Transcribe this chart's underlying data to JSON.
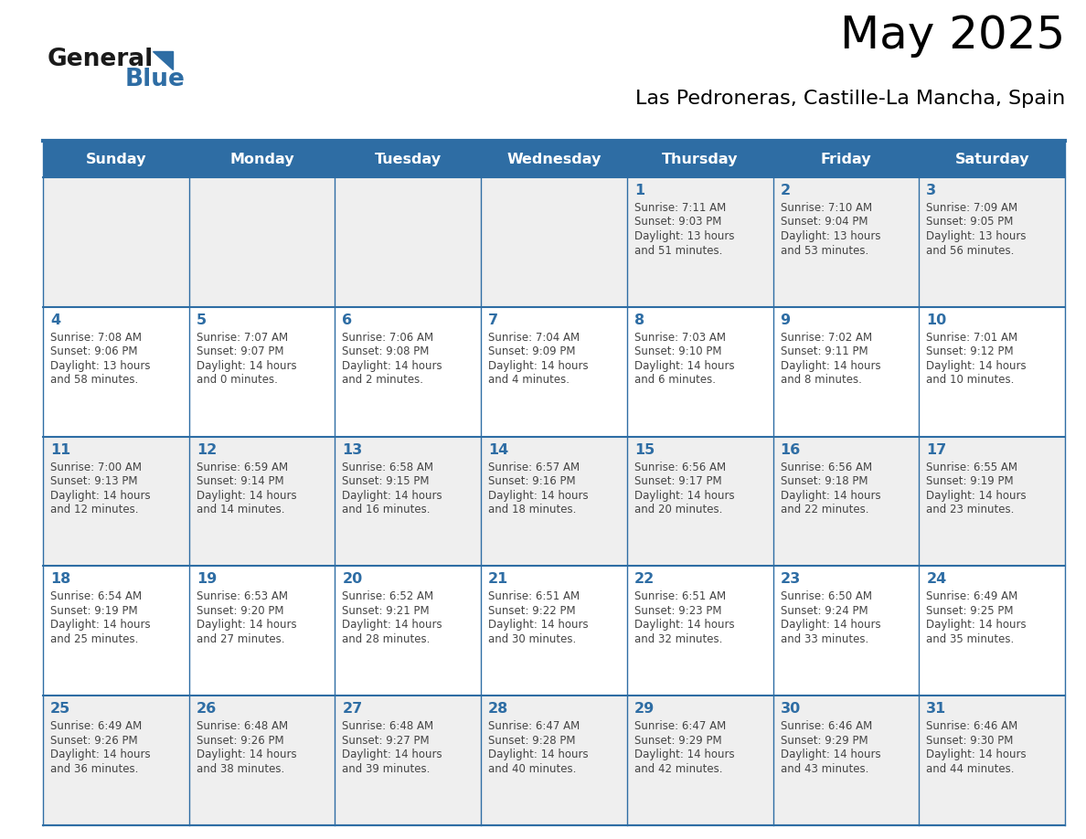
{
  "title": "May 2025",
  "subtitle": "Las Pedroneras, Castille-La Mancha, Spain",
  "days_of_week": [
    "Sunday",
    "Monday",
    "Tuesday",
    "Wednesday",
    "Thursday",
    "Friday",
    "Saturday"
  ],
  "header_bg": "#2E6DA4",
  "header_text": "#FFFFFF",
  "cell_bg_odd": "#EFEFEF",
  "cell_bg_even": "#FFFFFF",
  "day_number_color": "#2E6DA4",
  "text_color": "#444444",
  "line_color": "#2E6DA4",
  "logo_general_color": "#1a1a1a",
  "logo_blue_color": "#2E6DA4",
  "weeks": [
    [
      {
        "day": 0,
        "sunrise": "",
        "sunset": "",
        "daylight": ""
      },
      {
        "day": 0,
        "sunrise": "",
        "sunset": "",
        "daylight": ""
      },
      {
        "day": 0,
        "sunrise": "",
        "sunset": "",
        "daylight": ""
      },
      {
        "day": 0,
        "sunrise": "",
        "sunset": "",
        "daylight": ""
      },
      {
        "day": 1,
        "sunrise": "7:11 AM",
        "sunset": "9:03 PM",
        "daylight": "13 hours and 51 minutes."
      },
      {
        "day": 2,
        "sunrise": "7:10 AM",
        "sunset": "9:04 PM",
        "daylight": "13 hours and 53 minutes."
      },
      {
        "day": 3,
        "sunrise": "7:09 AM",
        "sunset": "9:05 PM",
        "daylight": "13 hours and 56 minutes."
      }
    ],
    [
      {
        "day": 4,
        "sunrise": "7:08 AM",
        "sunset": "9:06 PM",
        "daylight": "13 hours and 58 minutes."
      },
      {
        "day": 5,
        "sunrise": "7:07 AM",
        "sunset": "9:07 PM",
        "daylight": "14 hours and 0 minutes."
      },
      {
        "day": 6,
        "sunrise": "7:06 AM",
        "sunset": "9:08 PM",
        "daylight": "14 hours and 2 minutes."
      },
      {
        "day": 7,
        "sunrise": "7:04 AM",
        "sunset": "9:09 PM",
        "daylight": "14 hours and 4 minutes."
      },
      {
        "day": 8,
        "sunrise": "7:03 AM",
        "sunset": "9:10 PM",
        "daylight": "14 hours and 6 minutes."
      },
      {
        "day": 9,
        "sunrise": "7:02 AM",
        "sunset": "9:11 PM",
        "daylight": "14 hours and 8 minutes."
      },
      {
        "day": 10,
        "sunrise": "7:01 AM",
        "sunset": "9:12 PM",
        "daylight": "14 hours and 10 minutes."
      }
    ],
    [
      {
        "day": 11,
        "sunrise": "7:00 AM",
        "sunset": "9:13 PM",
        "daylight": "14 hours and 12 minutes."
      },
      {
        "day": 12,
        "sunrise": "6:59 AM",
        "sunset": "9:14 PM",
        "daylight": "14 hours and 14 minutes."
      },
      {
        "day": 13,
        "sunrise": "6:58 AM",
        "sunset": "9:15 PM",
        "daylight": "14 hours and 16 minutes."
      },
      {
        "day": 14,
        "sunrise": "6:57 AM",
        "sunset": "9:16 PM",
        "daylight": "14 hours and 18 minutes."
      },
      {
        "day": 15,
        "sunrise": "6:56 AM",
        "sunset": "9:17 PM",
        "daylight": "14 hours and 20 minutes."
      },
      {
        "day": 16,
        "sunrise": "6:56 AM",
        "sunset": "9:18 PM",
        "daylight": "14 hours and 22 minutes."
      },
      {
        "day": 17,
        "sunrise": "6:55 AM",
        "sunset": "9:19 PM",
        "daylight": "14 hours and 23 minutes."
      }
    ],
    [
      {
        "day": 18,
        "sunrise": "6:54 AM",
        "sunset": "9:19 PM",
        "daylight": "14 hours and 25 minutes."
      },
      {
        "day": 19,
        "sunrise": "6:53 AM",
        "sunset": "9:20 PM",
        "daylight": "14 hours and 27 minutes."
      },
      {
        "day": 20,
        "sunrise": "6:52 AM",
        "sunset": "9:21 PM",
        "daylight": "14 hours and 28 minutes."
      },
      {
        "day": 21,
        "sunrise": "6:51 AM",
        "sunset": "9:22 PM",
        "daylight": "14 hours and 30 minutes."
      },
      {
        "day": 22,
        "sunrise": "6:51 AM",
        "sunset": "9:23 PM",
        "daylight": "14 hours and 32 minutes."
      },
      {
        "day": 23,
        "sunrise": "6:50 AM",
        "sunset": "9:24 PM",
        "daylight": "14 hours and 33 minutes."
      },
      {
        "day": 24,
        "sunrise": "6:49 AM",
        "sunset": "9:25 PM",
        "daylight": "14 hours and 35 minutes."
      }
    ],
    [
      {
        "day": 25,
        "sunrise": "6:49 AM",
        "sunset": "9:26 PM",
        "daylight": "14 hours and 36 minutes."
      },
      {
        "day": 26,
        "sunrise": "6:48 AM",
        "sunset": "9:26 PM",
        "daylight": "14 hours and 38 minutes."
      },
      {
        "day": 27,
        "sunrise": "6:48 AM",
        "sunset": "9:27 PM",
        "daylight": "14 hours and 39 minutes."
      },
      {
        "day": 28,
        "sunrise": "6:47 AM",
        "sunset": "9:28 PM",
        "daylight": "14 hours and 40 minutes."
      },
      {
        "day": 29,
        "sunrise": "6:47 AM",
        "sunset": "9:29 PM",
        "daylight": "14 hours and 42 minutes."
      },
      {
        "day": 30,
        "sunrise": "6:46 AM",
        "sunset": "9:29 PM",
        "daylight": "14 hours and 43 minutes."
      },
      {
        "day": 31,
        "sunrise": "6:46 AM",
        "sunset": "9:30 PM",
        "daylight": "14 hours and 44 minutes."
      }
    ]
  ]
}
